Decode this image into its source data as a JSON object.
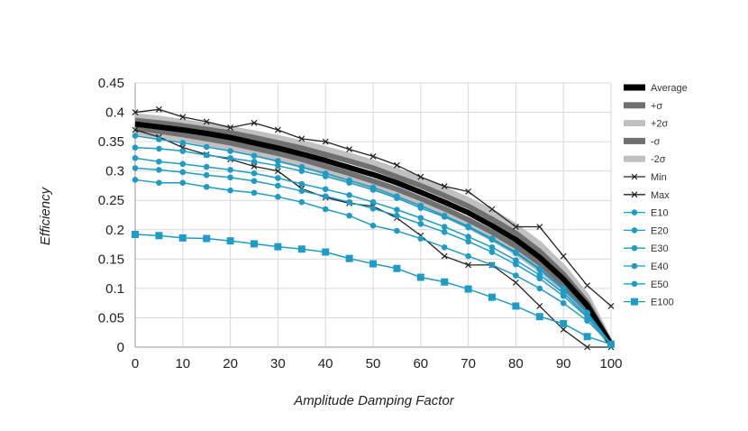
{
  "chart_data": {
    "type": "line",
    "title": "",
    "xlabel": "Amplitude Damping Factor",
    "ylabel": "Efficiency",
    "xlim": [
      0,
      100
    ],
    "ylim": [
      0,
      0.45
    ],
    "grid": true,
    "legend_position": "right",
    "x_ticks": [
      "0",
      "10",
      "20",
      "30",
      "40",
      "50",
      "60",
      "70",
      "80",
      "90",
      "100"
    ],
    "y_ticks": [
      "0",
      "0.05",
      "0.1",
      "0.15",
      "0.2",
      "0.25",
      "0.3",
      "0.35",
      "0.4",
      "0.45"
    ],
    "x": [
      0,
      5,
      10,
      15,
      20,
      25,
      30,
      35,
      40,
      45,
      50,
      55,
      60,
      65,
      70,
      75,
      80,
      85,
      90,
      95,
      100
    ],
    "series": [
      {
        "name": "+2σ",
        "color": "#c0c0c0",
        "values": [
          0.393,
          0.389,
          0.383,
          0.377,
          0.371,
          0.364,
          0.356,
          0.347,
          0.337,
          0.326,
          0.314,
          0.3,
          0.285,
          0.268,
          0.25,
          0.23,
          0.205,
          0.175,
          0.135,
          0.085,
          0.005
        ]
      },
      {
        "name": "-2σ",
        "color": "#c0c0c0",
        "values": [
          0.367,
          0.361,
          0.355,
          0.348,
          0.34,
          0.33,
          0.32,
          0.31,
          0.298,
          0.286,
          0.273,
          0.258,
          0.242,
          0.226,
          0.207,
          0.186,
          0.162,
          0.133,
          0.098,
          0.058,
          0.005
        ]
      },
      {
        "name": "+σ",
        "color": "#707070",
        "values": [
          0.386,
          0.382,
          0.377,
          0.371,
          0.365,
          0.357,
          0.348,
          0.339,
          0.328,
          0.317,
          0.305,
          0.29,
          0.275,
          0.258,
          0.24,
          0.218,
          0.194,
          0.163,
          0.124,
          0.076,
          0.005
        ]
      },
      {
        "name": "-σ",
        "color": "#707070",
        "values": [
          0.373,
          0.368,
          0.362,
          0.355,
          0.348,
          0.339,
          0.33,
          0.32,
          0.308,
          0.296,
          0.283,
          0.269,
          0.253,
          0.236,
          0.217,
          0.196,
          0.172,
          0.143,
          0.107,
          0.065,
          0.005
        ]
      },
      {
        "name": "Average",
        "color": "#000000",
        "values": [
          0.38,
          0.375,
          0.37,
          0.364,
          0.357,
          0.348,
          0.339,
          0.329,
          0.318,
          0.306,
          0.294,
          0.28,
          0.264,
          0.247,
          0.229,
          0.207,
          0.183,
          0.153,
          0.116,
          0.071,
          0.005
        ]
      },
      {
        "name": "Min",
        "color": "#222222",
        "values": [
          0.37,
          0.358,
          0.34,
          0.328,
          0.32,
          0.308,
          0.3,
          0.27,
          0.255,
          0.245,
          0.24,
          0.22,
          0.19,
          0.155,
          0.14,
          0.14,
          0.11,
          0.07,
          0.03,
          0.0,
          0.0
        ]
      },
      {
        "name": "Max",
        "color": "#222222",
        "values": [
          0.4,
          0.405,
          0.392,
          0.384,
          0.374,
          0.382,
          0.37,
          0.355,
          0.35,
          0.337,
          0.325,
          0.31,
          0.29,
          0.274,
          0.265,
          0.235,
          0.205,
          0.205,
          0.155,
          0.105,
          0.07
        ]
      },
      {
        "name": "E10",
        "color": "#1f9cc6",
        "values": [
          0.36,
          0.354,
          0.348,
          0.341,
          0.334,
          0.326,
          0.317,
          0.307,
          0.296,
          0.284,
          0.272,
          0.257,
          0.241,
          0.224,
          0.206,
          0.185,
          0.162,
          0.134,
          0.1,
          0.059,
          0.005
        ]
      },
      {
        "name": "E20",
        "color": "#1f9cc6",
        "values": [
          0.34,
          0.338,
          0.334,
          0.327,
          0.322,
          0.316,
          0.309,
          0.3,
          0.291,
          0.28,
          0.268,
          0.254,
          0.237,
          0.222,
          0.204,
          0.183,
          0.16,
          0.132,
          0.098,
          0.058,
          0.005
        ]
      },
      {
        "name": "E30",
        "color": "#1f9cc6",
        "values": [
          0.322,
          0.316,
          0.312,
          0.307,
          0.302,
          0.296,
          0.288,
          0.278,
          0.269,
          0.259,
          0.247,
          0.234,
          0.22,
          0.205,
          0.188,
          0.17,
          0.148,
          0.123,
          0.092,
          0.054,
          0.005
        ]
      },
      {
        "name": "E40",
        "color": "#1f9cc6",
        "values": [
          0.305,
          0.302,
          0.298,
          0.293,
          0.289,
          0.283,
          0.275,
          0.266,
          0.257,
          0.247,
          0.236,
          0.224,
          0.21,
          0.196,
          0.18,
          0.162,
          0.141,
          0.117,
          0.087,
          0.051,
          0.005
        ]
      },
      {
        "name": "E50",
        "color": "#1f9cc6",
        "values": [
          0.285,
          0.28,
          0.28,
          0.273,
          0.267,
          0.263,
          0.256,
          0.247,
          0.235,
          0.224,
          0.207,
          0.198,
          0.185,
          0.17,
          0.155,
          0.14,
          0.122,
          0.1,
          0.075,
          0.045,
          0.005
        ]
      },
      {
        "name": "E100",
        "color": "#1f9cc6",
        "values": [
          0.192,
          0.19,
          0.186,
          0.185,
          0.181,
          0.176,
          0.171,
          0.167,
          0.162,
          0.151,
          0.142,
          0.134,
          0.119,
          0.111,
          0.099,
          0.085,
          0.07,
          0.052,
          0.04,
          0.018,
          0.005
        ]
      }
    ],
    "legend": [
      {
        "name": "Average",
        "color": "#000000",
        "style": "thick"
      },
      {
        "name": "+σ",
        "color": "#707070",
        "style": "thick"
      },
      {
        "name": "+2σ",
        "color": "#c0c0c0",
        "style": "thick"
      },
      {
        "name": "-σ",
        "color": "#707070",
        "style": "thick"
      },
      {
        "name": "-2σ",
        "color": "#c0c0c0",
        "style": "thick"
      },
      {
        "name": "Min",
        "color": "#222222",
        "style": "cross"
      },
      {
        "name": "Max",
        "color": "#222222",
        "style": "cross"
      },
      {
        "name": "E10",
        "color": "#1f9cc6",
        "style": "circle"
      },
      {
        "name": "E20",
        "color": "#1f9cc6",
        "style": "circle"
      },
      {
        "name": "E30",
        "color": "#1f9cc6",
        "style": "circle"
      },
      {
        "name": "E40",
        "color": "#1f9cc6",
        "style": "circle"
      },
      {
        "name": "E50",
        "color": "#1f9cc6",
        "style": "circle"
      },
      {
        "name": "E100",
        "color": "#1f9cc6",
        "style": "square"
      }
    ]
  }
}
